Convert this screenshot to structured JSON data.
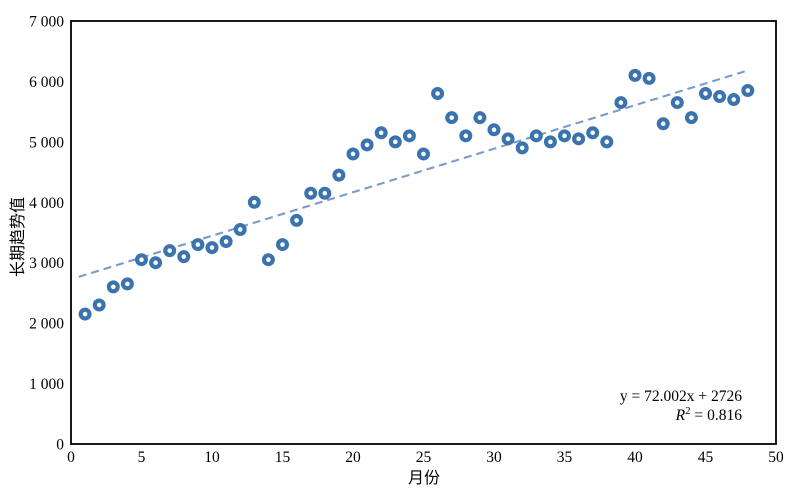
{
  "chart_data": {
    "type": "scatter",
    "title": "",
    "xlabel": "月份",
    "ylabel": "长期趋势值",
    "xlim": [
      0,
      50
    ],
    "ylim": [
      0,
      7000
    ],
    "grid": false,
    "legend": "none",
    "x_tick_values": [
      0,
      5,
      10,
      15,
      20,
      25,
      30,
      35,
      40,
      45,
      50
    ],
    "x_tick_labels": [
      "0",
      "5",
      "10",
      "15",
      "20",
      "25",
      "30",
      "35",
      "40",
      "45",
      "50"
    ],
    "y_tick_values": [
      0,
      1000,
      2000,
      3000,
      4000,
      5000,
      6000,
      7000
    ],
    "y_tick_labels": [
      "0",
      "1 000",
      "2 000",
      "3 000",
      "4 000",
      "5 000",
      "6 000",
      "7 000"
    ],
    "x": [
      1,
      2,
      3,
      4,
      5,
      6,
      7,
      8,
      9,
      10,
      11,
      12,
      13,
      14,
      15,
      16,
      17,
      18,
      19,
      20,
      21,
      22,
      23,
      24,
      25,
      26,
      27,
      28,
      29,
      30,
      31,
      32,
      33,
      34,
      35,
      36,
      37,
      38,
      39,
      40,
      41,
      42,
      43,
      44,
      45,
      46,
      47,
      48
    ],
    "values": [
      2150,
      2300,
      2600,
      2650,
      3050,
      3000,
      3200,
      3100,
      3300,
      3250,
      3350,
      3550,
      4000,
      3050,
      3300,
      3700,
      4150,
      4150,
      4450,
      4800,
      4950,
      5150,
      5000,
      5100,
      4800,
      5800,
      5400,
      5100,
      5400,
      5200,
      5050,
      4900,
      5100,
      5000,
      5100,
      5050,
      5150,
      5000,
      5650,
      6100,
      6050,
      5300,
      5650,
      5400,
      5800,
      5750,
      5700,
      5850
    ],
    "trendline": {
      "slope": 72.002,
      "intercept": 2726,
      "r_squared": 0.816,
      "x_start": 0.55,
      "x_end": 48.05,
      "style": "dashed"
    },
    "annotation": {
      "equation": "y = 72.002x + 2726",
      "r_symbol": "R",
      "r_exponent": "2",
      "r_value": " = 0.816"
    },
    "colors": {
      "marker_stroke": "#3B73AF",
      "marker_fill": "#FFFFFF",
      "trendline": "#7A9CCB",
      "axis": "#000000",
      "text": "#000000",
      "background": "#FFFFFF"
    },
    "marker": {
      "shape": "circle-hollow",
      "outer_radius": 6.5,
      "ring_width": 4.2
    }
  }
}
